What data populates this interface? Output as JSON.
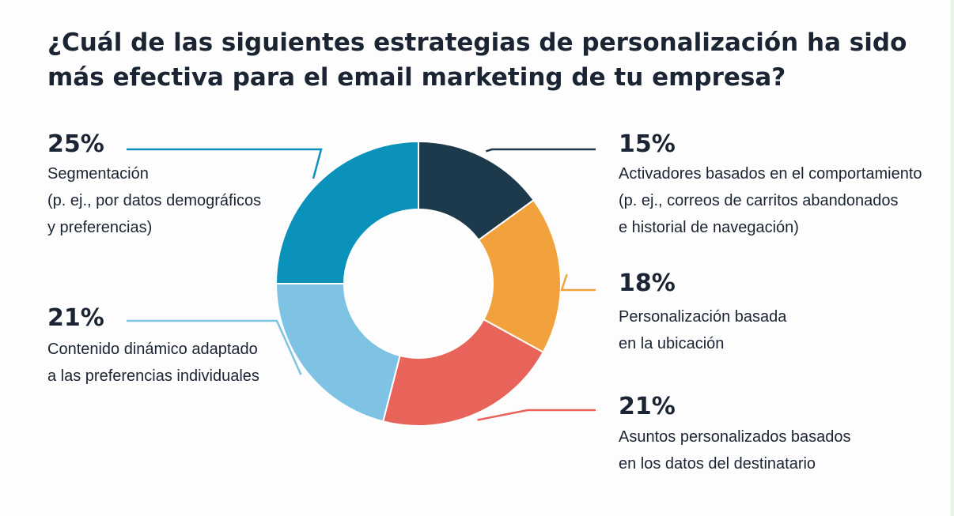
{
  "chart_data": {
    "type": "pie",
    "title": "¿Cuál de las siguientes estrategias de personalización ha sido más efectiva para el email marketing de tu empresa?",
    "unit": "%",
    "slices": [
      {
        "key": "comportamiento",
        "value": 15,
        "label": "15%",
        "color": "#1d3a4c",
        "description": [
          "Activadores basados en el comportamiento",
          "(p. ej., correos de carritos abandonados",
          "e historial de navegación)"
        ]
      },
      {
        "key": "ubicacion",
        "value": 18,
        "label": "18%",
        "color": "#f2a23c",
        "description": [
          "Personalización basada",
          "en la ubicación"
        ]
      },
      {
        "key": "asuntos",
        "value": 21,
        "label": "21%",
        "color": "#e8645a",
        "description": [
          "Asuntos personalizados basados",
          "en los datos del destinatario"
        ]
      },
      {
        "key": "contenido",
        "value": 21,
        "label": "21%",
        "color": "#7ec3e4",
        "description": [
          "Contenido dinámico adaptado",
          "a las preferencias individuales"
        ]
      },
      {
        "key": "segmentacion",
        "value": 25,
        "label": "25%",
        "color": "#0b92ba",
        "description": [
          "Segmentación",
          "(p. ej., por datos demográficos",
          "y preferencias)"
        ]
      }
    ]
  }
}
